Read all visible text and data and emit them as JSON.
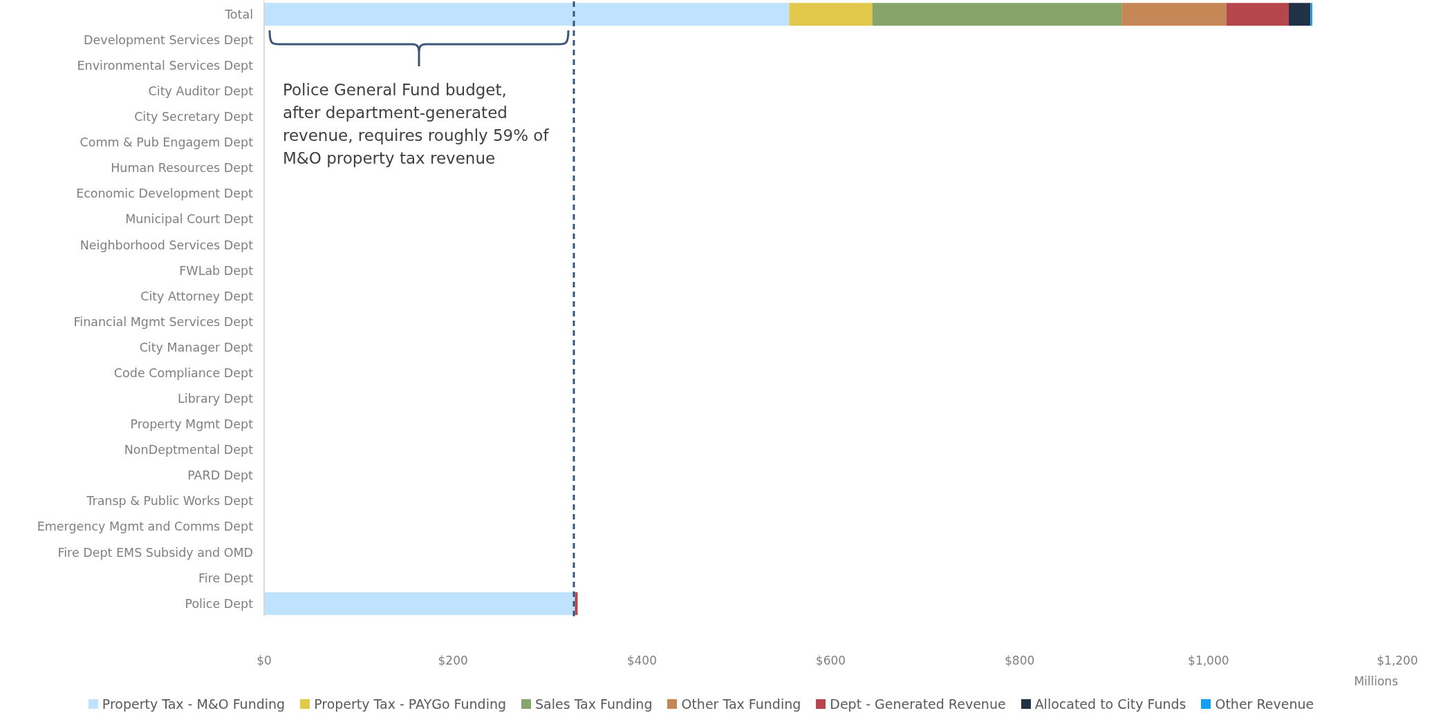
{
  "chart_data": {
    "type": "bar",
    "orientation": "horizontal",
    "stacked": true,
    "categories": [
      "Total",
      "Development Services Dept",
      "Environmental Services Dept",
      "City Auditor Dept",
      "City Secretary Dept",
      "Comm & Pub Engagem Dept",
      "Human Resources Dept",
      "Economic Development Dept",
      "Municipal Court Dept",
      "Neighborhood Services Dept",
      "FWLab Dept",
      "City Attorney Dept",
      "Financial Mgmt Services Dept",
      "City Manager Dept",
      "Code Compliance Dept",
      "Library Dept",
      "Property Mgmt Dept",
      "NonDeptmental Dept",
      "PARD Dept",
      "Transp & Public Works Dept",
      "Emergency Mgmt and Comms Dept",
      "Fire Dept EMS Subsidy and OMD",
      "Fire Dept",
      "Police Dept"
    ],
    "series": [
      {
        "name": "Property Tax - M&O Funding",
        "color": "#bfe3fd",
        "values": [
          556,
          null,
          null,
          null,
          null,
          null,
          null,
          null,
          null,
          null,
          null,
          null,
          null,
          null,
          null,
          null,
          null,
          null,
          null,
          null,
          null,
          null,
          null,
          329
        ]
      },
      {
        "name": "Property Tax - PAYGo Funding",
        "color": "#e2c94b",
        "values": [
          88,
          null,
          null,
          null,
          null,
          null,
          null,
          null,
          null,
          null,
          null,
          null,
          null,
          null,
          null,
          null,
          null,
          null,
          null,
          null,
          null,
          null,
          null,
          null
        ]
      },
      {
        "name": "Sales Tax Funding",
        "color": "#87a56a",
        "values": [
          264,
          null,
          null,
          null,
          null,
          null,
          null,
          null,
          null,
          null,
          null,
          null,
          null,
          null,
          null,
          null,
          null,
          null,
          null,
          null,
          null,
          null,
          null,
          null
        ]
      },
      {
        "name": "Other Tax Funding",
        "color": "#c48755",
        "values": [
          111,
          null,
          null,
          null,
          null,
          null,
          null,
          null,
          null,
          null,
          null,
          null,
          null,
          null,
          null,
          null,
          null,
          null,
          null,
          null,
          null,
          null,
          null,
          null
        ]
      },
      {
        "name": "Dept - Generated Revenue",
        "color": "#b4464c",
        "values": [
          66,
          null,
          null,
          null,
          null,
          null,
          null,
          null,
          null,
          null,
          null,
          null,
          null,
          null,
          null,
          null,
          null,
          null,
          null,
          null,
          null,
          null,
          null,
          3
        ]
      },
      {
        "name": "Allocated to City Funds",
        "color": "#213247",
        "values": [
          23,
          null,
          null,
          null,
          null,
          null,
          null,
          null,
          null,
          null,
          null,
          null,
          null,
          null,
          null,
          null,
          null,
          null,
          null,
          null,
          null,
          null,
          null,
          null
        ]
      },
      {
        "name": "Other Revenue",
        "color": "#12a0f5",
        "values": [
          2,
          null,
          null,
          null,
          null,
          null,
          null,
          null,
          null,
          null,
          null,
          null,
          null,
          null,
          null,
          null,
          null,
          null,
          null,
          null,
          null,
          null,
          null,
          null
        ]
      }
    ],
    "xlim": [
      0,
      1200
    ],
    "xticks": [
      {
        "value": 0,
        "label": "$0"
      },
      {
        "value": 200,
        "label": "$200"
      },
      {
        "value": 400,
        "label": "$400"
      },
      {
        "value": 600,
        "label": "$600"
      },
      {
        "value": 800,
        "label": "$800"
      },
      {
        "value": 1000,
        "label": "$1,000"
      },
      {
        "value": 1200,
        "label": "$1,200"
      }
    ],
    "xlabel": "Millions",
    "ref_lines": [
      {
        "axis": "x",
        "value": 328,
        "color": "#3b5577",
        "line_style": "dashed"
      }
    ],
    "annotations": [
      "Police General Fund budget, after department-generated revenue, requires roughly 59% of M&O property tax revenue"
    ],
    "legend": "bottom",
    "grid": false
  }
}
